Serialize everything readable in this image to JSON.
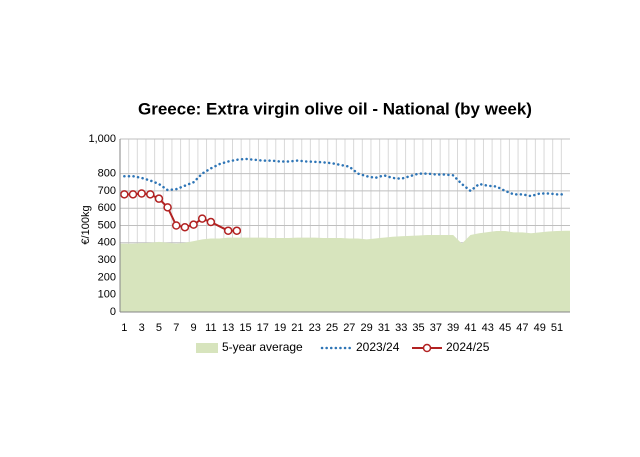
{
  "chart_data": {
    "type": "line",
    "title": "Greece: Extra virgin olive oil - National (by week)",
    "y_label": "€/100kg",
    "x": [
      1,
      2,
      3,
      4,
      5,
      6,
      7,
      8,
      9,
      10,
      11,
      12,
      13,
      14,
      15,
      16,
      17,
      18,
      19,
      20,
      21,
      22,
      23,
      24,
      25,
      26,
      27,
      28,
      29,
      30,
      31,
      32,
      33,
      34,
      35,
      36,
      37,
      38,
      39,
      40,
      41,
      42,
      43,
      44,
      45,
      46,
      47,
      48,
      49,
      50,
      51,
      52
    ],
    "xlim": [
      0.5,
      52.5
    ],
    "xticks": [
      1,
      3,
      5,
      7,
      9,
      11,
      13,
      15,
      17,
      19,
      21,
      23,
      25,
      27,
      29,
      31,
      33,
      35,
      37,
      39,
      41,
      43,
      45,
      47,
      49,
      51
    ],
    "ylim": [
      0,
      1000
    ],
    "yticks": [
      0,
      100,
      200,
      300,
      400,
      500,
      600,
      700,
      800,
      {
        "value": 1000,
        "label": "1,000"
      }
    ],
    "grid": true,
    "legend": "bottom",
    "series": [
      {
        "name": "5-year average",
        "style": "area",
        "color": "#d7e4bd",
        "values": [
          395,
          395,
          398,
          400,
          405,
          400,
          395,
          400,
          410,
          420,
          425,
          425,
          430,
          430,
          430,
          430,
          430,
          428,
          428,
          428,
          430,
          430,
          430,
          428,
          428,
          428,
          425,
          425,
          420,
          425,
          430,
          435,
          438,
          440,
          442,
          445,
          445,
          445,
          445,
          395,
          445,
          455,
          462,
          468,
          468,
          460,
          460,
          455,
          460,
          465,
          468,
          470
        ]
      },
      {
        "name": "2023/24",
        "style": "dotted",
        "color": "#2e75b6",
        "values": [
          785,
          785,
          775,
          760,
          740,
          705,
          710,
          730,
          750,
          800,
          830,
          855,
          870,
          880,
          885,
          880,
          875,
          875,
          870,
          870,
          875,
          870,
          868,
          865,
          860,
          850,
          840,
          800,
          785,
          775,
          790,
          775,
          770,
          785,
          800,
          800,
          795,
          795,
          790,
          740,
          700,
          740,
          730,
          725,
          700,
          680,
          680,
          670,
          685,
          685,
          680,
          680
        ]
      },
      {
        "name": "2024/25",
        "style": "marker",
        "color": "#b22222",
        "x": [
          1,
          2,
          3,
          4,
          5,
          6,
          7,
          8,
          9,
          10,
          11,
          13,
          14
        ],
        "values": [
          680,
          680,
          685,
          680,
          655,
          605,
          500,
          490,
          505,
          540,
          520,
          470,
          470
        ]
      }
    ]
  }
}
